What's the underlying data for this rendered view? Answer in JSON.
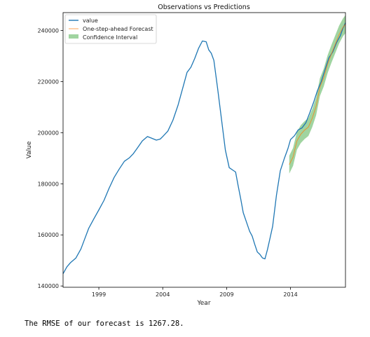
{
  "chart_data": {
    "type": "line",
    "title": "Observations vs Predictions",
    "xlabel": "Year",
    "ylabel": "Value",
    "xlim": [
      1996.2,
      2018.3
    ],
    "ylim": [
      139500,
      247000
    ],
    "x_ticks": [
      1999,
      2004,
      2009,
      2014
    ],
    "y_ticks": [
      140000,
      160000,
      180000,
      200000,
      220000,
      240000
    ],
    "grid": false,
    "legend_position": "top-left",
    "series": [
      {
        "name": "value",
        "color": "#1f77b4",
        "x": [
          1996.2,
          1996.5,
          1996.8,
          1997.2,
          1997.6,
          1997.9,
          1998.2,
          1998.6,
          1999.0,
          1999.4,
          1999.8,
          2000.2,
          2000.6,
          2001.0,
          2001.4,
          2001.7,
          2002.0,
          2002.4,
          2002.8,
          2003.1,
          2003.5,
          2003.8,
          2004.0,
          2004.4,
          2004.8,
          2005.2,
          2005.6,
          2005.9,
          2006.2,
          2006.5,
          2006.8,
          2007.1,
          2007.4,
          2007.6,
          2007.8,
          2008.0,
          2008.3,
          2008.6,
          2008.9,
          2009.2,
          2009.5,
          2009.7,
          2009.9,
          2010.1,
          2010.3,
          2010.6,
          2010.8,
          2011.0,
          2011.2,
          2011.4,
          2011.6,
          2011.8,
          2012.0,
          2012.2,
          2012.4,
          2012.6,
          2012.9,
          2013.2,
          2013.5,
          2013.8,
          2014.0,
          2014.3,
          2014.6,
          2014.9,
          2015.2,
          2015.5,
          2015.8,
          2016.1,
          2016.4,
          2016.7,
          2017.0,
          2017.3,
          2017.6,
          2017.9,
          2018.1,
          2018.3
        ],
        "y": [
          144800,
          147500,
          149200,
          150900,
          154500,
          158500,
          162500,
          166200,
          169800,
          173500,
          178200,
          182500,
          185800,
          188800,
          190200,
          191800,
          193900,
          196800,
          198500,
          197900,
          197100,
          197500,
          198500,
          200600,
          204900,
          210800,
          218100,
          223600,
          225600,
          229000,
          233000,
          235900,
          235600,
          232400,
          231100,
          228300,
          217200,
          205200,
          193200,
          186300,
          185300,
          184600,
          179300,
          174100,
          168700,
          164300,
          161400,
          159500,
          156300,
          153300,
          152400,
          151000,
          150600,
          154400,
          158800,
          163400,
          175500,
          185100,
          189700,
          193800,
          197300,
          198800,
          201100,
          201900,
          203900,
          207700,
          211800,
          216400,
          220000,
          224700,
          229300,
          231600,
          235200,
          238000,
          240900,
          243000
        ]
      },
      {
        "name": "One-step-ahead Forecast",
        "color": "#ff7f0e",
        "x": [
          2013.9,
          2014.2,
          2014.5,
          2014.8,
          2015.1,
          2015.4,
          2015.7,
          2016.0,
          2016.3,
          2016.6,
          2016.9,
          2017.2,
          2017.5,
          2017.8,
          2018.1,
          2018.3
        ],
        "y": [
          187500,
          190500,
          196800,
          199400,
          201000,
          202200,
          205700,
          210300,
          217800,
          221600,
          226800,
          230800,
          234600,
          238400,
          241200,
          242500
        ]
      }
    ],
    "confidence_interval": {
      "name": "Confidence Interval",
      "color": "#2ca02c",
      "x": [
        2013.9,
        2014.2,
        2014.5,
        2014.8,
        2015.1,
        2015.4,
        2015.7,
        2016.0,
        2016.3,
        2016.6,
        2016.9,
        2017.2,
        2017.5,
        2017.8,
        2018.1,
        2018.3
      ],
      "lower": [
        184000,
        187000,
        193300,
        195900,
        197500,
        198700,
        202200,
        206800,
        214300,
        218100,
        223300,
        227300,
        231100,
        234900,
        237700,
        239000
      ],
      "upper": [
        191000,
        194000,
        200300,
        202900,
        204500,
        205700,
        209200,
        213800,
        221300,
        225100,
        230300,
        234300,
        238100,
        241900,
        244700,
        246000
      ]
    },
    "legend": [
      "value",
      "One-step-ahead Forecast",
      "Confidence Interval"
    ]
  },
  "output_text": "The RMSE of our forecast is 1267.28."
}
